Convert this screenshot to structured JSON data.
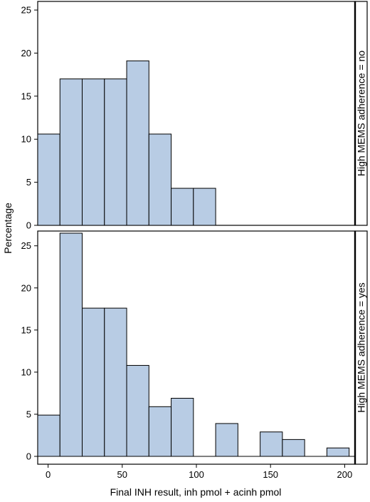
{
  "chart_data": {
    "type": "bar",
    "layout": "faceted-histogram",
    "xlabel": "Final INH result, inh pmol + acinh pmol",
    "ylabel": "Percentage",
    "x_ticks": [
      0,
      50,
      100,
      150,
      200
    ],
    "xlim": [
      -7,
      207
    ],
    "bin_width": 15,
    "bar_color": "#b8cce4",
    "panels": [
      {
        "strip_label": "High MEMS adherence = no",
        "ylim": [
          0,
          26
        ],
        "y_ticks": [
          0,
          5,
          10,
          15,
          20,
          25
        ],
        "bins": [
          {
            "start": -7,
            "end": 8,
            "value": 10.6
          },
          {
            "start": 8,
            "end": 23,
            "value": 17.0
          },
          {
            "start": 23,
            "end": 38,
            "value": 17.0
          },
          {
            "start": 38,
            "end": 53,
            "value": 17.0
          },
          {
            "start": 53,
            "end": 68,
            "value": 19.1
          },
          {
            "start": 68,
            "end": 83,
            "value": 10.6
          },
          {
            "start": 83,
            "end": 98,
            "value": 4.3
          },
          {
            "start": 98,
            "end": 113,
            "value": 4.3
          }
        ]
      },
      {
        "strip_label": "High MEMS adherence = yes",
        "ylim": [
          0,
          26.5
        ],
        "y_ticks": [
          0,
          5,
          10,
          15,
          20,
          25
        ],
        "bins": [
          {
            "start": -7,
            "end": 8,
            "value": 4.9
          },
          {
            "start": 8,
            "end": 23,
            "value": 26.5
          },
          {
            "start": 23,
            "end": 38,
            "value": 17.6
          },
          {
            "start": 38,
            "end": 53,
            "value": 17.6
          },
          {
            "start": 53,
            "end": 68,
            "value": 10.8
          },
          {
            "start": 68,
            "end": 83,
            "value": 5.9
          },
          {
            "start": 83,
            "end": 98,
            "value": 6.9
          },
          {
            "start": 113,
            "end": 128,
            "value": 3.9
          },
          {
            "start": 143,
            "end": 158,
            "value": 2.9
          },
          {
            "start": 158,
            "end": 173,
            "value": 2.0
          },
          {
            "start": 188,
            "end": 203,
            "value": 1.0
          }
        ]
      }
    ]
  }
}
